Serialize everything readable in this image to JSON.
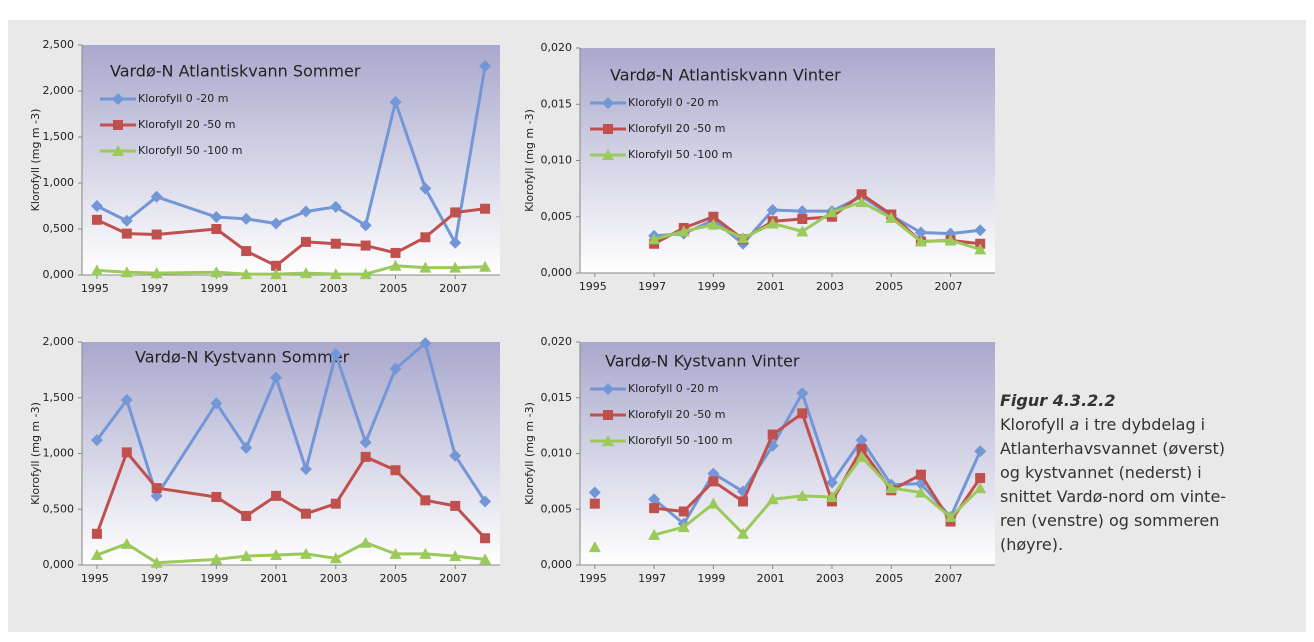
{
  "chart_data": [
    {
      "type": "line",
      "title": "Vardø-N Atlantiskvann Sommer",
      "y_label": "Klorofyll (mg m -3)",
      "legend": "upper left",
      "xlim": [
        1994.5,
        2008.5
      ],
      "xticks": [
        1995,
        1997,
        1999,
        2001,
        2003,
        2005,
        2007
      ],
      "ylim": [
        0,
        2.5
      ],
      "yticks": [
        {
          "value": 0,
          "label": "0,000"
        },
        {
          "value": 0.5,
          "label": "0,500"
        },
        {
          "value": 1,
          "label": "1,000"
        },
        {
          "value": 1.5,
          "label": "1,500"
        },
        {
          "value": 2,
          "label": "2,000"
        },
        {
          "value": 2.5,
          "label": "2,500"
        }
      ],
      "x": [
        1995,
        1996,
        1997,
        1999,
        2000,
        2001,
        2002,
        2003,
        2004,
        2005,
        2006,
        2007,
        2008
      ],
      "series": [
        {
          "name": "Klorofyll 0 -20 m",
          "color": "#7396d6",
          "marker": "diamond",
          "values": [
            0.75,
            0.59,
            0.85,
            0.63,
            0.61,
            0.56,
            0.69,
            0.74,
            0.54,
            1.88,
            0.94,
            0.35,
            2.27
          ]
        },
        {
          "name": "Klorofyll 20 -50 m",
          "color": "#c0504d",
          "marker": "square",
          "values": [
            0.6,
            0.45,
            0.44,
            0.5,
            0.26,
            0.1,
            0.36,
            0.34,
            0.32,
            0.24,
            0.41,
            0.68,
            0.72
          ]
        },
        {
          "name": "Klorofyll 50 -100 m",
          "color": "#9bc95a",
          "marker": "triangle",
          "values": [
            0.05,
            0.03,
            0.02,
            0.03,
            0.01,
            0.01,
            0.02,
            0.01,
            0.01,
            0.1,
            0.08,
            0.08,
            0.09
          ]
        }
      ]
    },
    {
      "type": "line",
      "title": "Vardø-N Atlantiskvann Vinter",
      "y_label": "Klorofyll (mg m -3)",
      "legend": "upper left",
      "xlim": [
        1994.5,
        2008.5
      ],
      "xticks": [
        1995,
        1997,
        1999,
        2001,
        2003,
        2005,
        2007
      ],
      "ylim": [
        0,
        0.02
      ],
      "yticks": [
        {
          "value": 0,
          "label": "0,000"
        },
        {
          "value": 0.005,
          "label": "0,005"
        },
        {
          "value": 0.01,
          "label": "0,010"
        },
        {
          "value": 0.015,
          "label": "0,015"
        },
        {
          "value": 0.02,
          "label": "0,020"
        }
      ],
      "x": [
        1997,
        1998,
        1999,
        2000,
        2001,
        2002,
        2003,
        2004,
        2005,
        2006,
        2007,
        2008
      ],
      "series": [
        {
          "name": "Klorofyll 0 -20 m",
          "color": "#7396d6",
          "marker": "diamond",
          "values": [
            0.0033,
            0.0035,
            0.0047,
            0.0026,
            0.0056,
            0.0055,
            0.0055,
            0.0068,
            0.0051,
            0.0036,
            0.0035,
            0.0038
          ]
        },
        {
          "name": "Klorofyll 20 -50 m",
          "color": "#c0504d",
          "marker": "square",
          "values": [
            0.0026,
            0.004,
            0.005,
            0.003,
            0.0046,
            0.0048,
            0.005,
            0.007,
            0.0052,
            0.0028,
            0.0029,
            0.0026
          ]
        },
        {
          "name": "Klorofyll 50 -100 m",
          "color": "#9bc95a",
          "marker": "triangle",
          "values": [
            0.003,
            0.0037,
            0.0043,
            0.0031,
            0.0044,
            0.0037,
            0.0054,
            0.0063,
            0.0049,
            0.0028,
            0.0029,
            0.0021
          ]
        }
      ]
    },
    {
      "type": "line",
      "title": "Vardø-N Kystvann Sommer",
      "y_label": "Klorofyll (mg m -3)",
      "xlim": [
        1994.5,
        2008.5
      ],
      "xticks": [
        1995,
        1997,
        1999,
        2001,
        2003,
        2005,
        2007
      ],
      "ylim": [
        0,
        2
      ],
      "yticks": [
        {
          "value": 0,
          "label": "0,000"
        },
        {
          "value": 0.5,
          "label": "0,500"
        },
        {
          "value": 1,
          "label": "1,000"
        },
        {
          "value": 1.5,
          "label": "1,500"
        },
        {
          "value": 2,
          "label": "2,000"
        }
      ],
      "x": [
        1995,
        1996,
        1997,
        1999,
        2000,
        2001,
        2002,
        2003,
        2004,
        2005,
        2006,
        2007,
        2008
      ],
      "series": [
        {
          "color": "#7396d6",
          "marker": "diamond",
          "values": [
            1.12,
            1.48,
            0.62,
            1.45,
            1.05,
            1.68,
            0.86,
            1.89,
            1.1,
            1.76,
            1.99,
            0.98,
            0.57
          ]
        },
        {
          "color": "#c0504d",
          "marker": "square",
          "values": [
            0.28,
            1.01,
            0.69,
            0.61,
            0.44,
            0.62,
            0.46,
            0.55,
            0.97,
            0.85,
            0.58,
            0.53,
            0.24
          ]
        },
        {
          "color": "#9bc95a",
          "marker": "triangle",
          "values": [
            0.09,
            0.19,
            0.02,
            0.05,
            0.08,
            0.09,
            0.1,
            0.06,
            0.2,
            0.1,
            0.1,
            0.08,
            0.05
          ]
        }
      ]
    },
    {
      "type": "line",
      "title": "Vardø-N Kystvann Vinter",
      "y_label": "Klorofyll (mg m -3)",
      "legend": "upper left",
      "xlim": [
        1994.5,
        2008.5
      ],
      "xticks": [
        1995,
        1997,
        1999,
        2001,
        2003,
        2005,
        2007
      ],
      "ylim": [
        0,
        0.02
      ],
      "yticks": [
        {
          "value": 0,
          "label": "0,000"
        },
        {
          "value": 0.005,
          "label": "0,005"
        },
        {
          "value": 0.01,
          "label": "0,010"
        },
        {
          "value": 0.015,
          "label": "0,015"
        },
        {
          "value": 0.02,
          "label": "0,020"
        }
      ],
      "x": [
        1995,
        1996,
        1997,
        1998,
        1999,
        2000,
        2001,
        2002,
        2003,
        2004,
        2005,
        2006,
        2007,
        2008
      ],
      "series": [
        {
          "name": "Klorofyll 0 -20 m",
          "color": "#7396d6",
          "marker": "diamond",
          "values": [
            0.0065,
            null,
            0.0059,
            0.0037,
            0.0082,
            0.0066,
            0.0107,
            0.0154,
            0.0074,
            0.0112,
            0.0072,
            0.0073,
            0.0043,
            0.0102
          ]
        },
        {
          "name": "Klorofyll 20 -50 m",
          "color": "#c0504d",
          "marker": "square",
          "values": [
            0.0055,
            null,
            0.0051,
            0.0048,
            0.0075,
            0.0057,
            0.0117,
            0.0136,
            0.0057,
            0.0104,
            0.0067,
            0.0081,
            0.0039,
            0.0078
          ]
        },
        {
          "name": "Klorofyll 50 -100 m",
          "color": "#9bc95a",
          "marker": "triangle",
          "values": [
            0.0016,
            null,
            0.0027,
            0.0034,
            0.0055,
            0.0028,
            0.0059,
            0.0062,
            0.0061,
            0.0097,
            0.0069,
            0.0065,
            0.0043,
            0.0069
          ]
        }
      ]
    }
  ],
  "caption": {
    "title": "Figur 4.3.2.2",
    "line1": [
      "Klorofyll ",
      "a",
      " i tre dybdelag i"
    ],
    "lines": [
      "Atlanterhavsvannet (øverst)",
      "og kystvannet (nederst) i",
      "snittet Vardø-nord om vinte-",
      "ren (venstre) og sommeren",
      "(høyre)."
    ]
  }
}
